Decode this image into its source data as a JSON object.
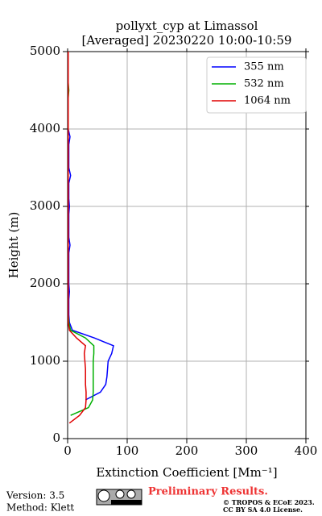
{
  "chart_data": {
    "type": "line",
    "title": "pollyxt_cyp at Limassol",
    "subtitle": "[Averaged] 20230220 10:00-10:59",
    "xlabel": "Extinction Coefficient [Mm⁻¹]",
    "ylabel": "Height (m)",
    "xlim": [
      0,
      400
    ],
    "xticks": [
      0,
      100,
      200,
      300,
      400
    ],
    "ylim": [
      0,
      5000
    ],
    "yticks": [
      0,
      1000,
      2000,
      3000,
      4000,
      5000
    ],
    "grid": true,
    "legend": "upper right",
    "y": [
      0,
      100,
      200,
      300,
      400,
      500,
      600,
      700,
      800,
      900,
      1000,
      1100,
      1200,
      1300,
      1400,
      1500,
      1600,
      1700,
      1800,
      1900,
      2000,
      2100,
      2200,
      2300,
      2400,
      2500,
      2600,
      2700,
      2800,
      2900,
      3000,
      3100,
      3200,
      3300,
      3400,
      3500,
      3600,
      3700,
      3800,
      3900,
      4000,
      4100,
      4200,
      4300,
      4400,
      4500,
      4600,
      4700,
      4800,
      4900,
      5000
    ],
    "series": [
      {
        "name": "355 nm",
        "color": "#0000ff",
        "values": [
          null,
          null,
          null,
          null,
          null,
          30,
          55,
          64,
          66,
          67,
          68,
          74,
          77,
          45,
          8,
          3,
          2,
          2,
          2,
          3,
          2,
          2,
          2,
          2,
          2,
          4,
          2,
          2,
          2,
          2,
          3,
          2,
          2,
          2,
          5,
          2,
          2,
          2,
          2,
          4,
          1,
          1,
          1,
          1,
          1,
          1,
          1,
          1,
          1,
          1,
          1
        ]
      },
      {
        "name": "532 nm",
        "color": "#00b000",
        "values": [
          null,
          null,
          null,
          5,
          35,
          42,
          43,
          43,
          43,
          43,
          43,
          44,
          44,
          30,
          5,
          2,
          1,
          1,
          1,
          1,
          1,
          1,
          1,
          1,
          1,
          1,
          1,
          1,
          1,
          1,
          1,
          1,
          1,
          1,
          1,
          1,
          1,
          1,
          1,
          1,
          1,
          1,
          1,
          1,
          1,
          2,
          1,
          1,
          1,
          1,
          1
        ]
      },
      {
        "name": "1064 nm",
        "color": "#e00000",
        "values": [
          null,
          null,
          3,
          20,
          30,
          31,
          31,
          30,
          30,
          30,
          29,
          28,
          30,
          15,
          3,
          1,
          1,
          1,
          1,
          1,
          1,
          1,
          1,
          1,
          1,
          1,
          1,
          1,
          1,
          1,
          1,
          1,
          1,
          1,
          1,
          1,
          1,
          1,
          1,
          1,
          1,
          1,
          1,
          1,
          1,
          1,
          1,
          1,
          1,
          1,
          1
        ]
      }
    ]
  },
  "footer": {
    "version": "Version: 3.5",
    "method": "Method: Klett",
    "preliminary": "Preliminary Results.",
    "copyright": "© TROPOS & ECoE 2023.",
    "license": "CC BY SA 4.0 License."
  }
}
